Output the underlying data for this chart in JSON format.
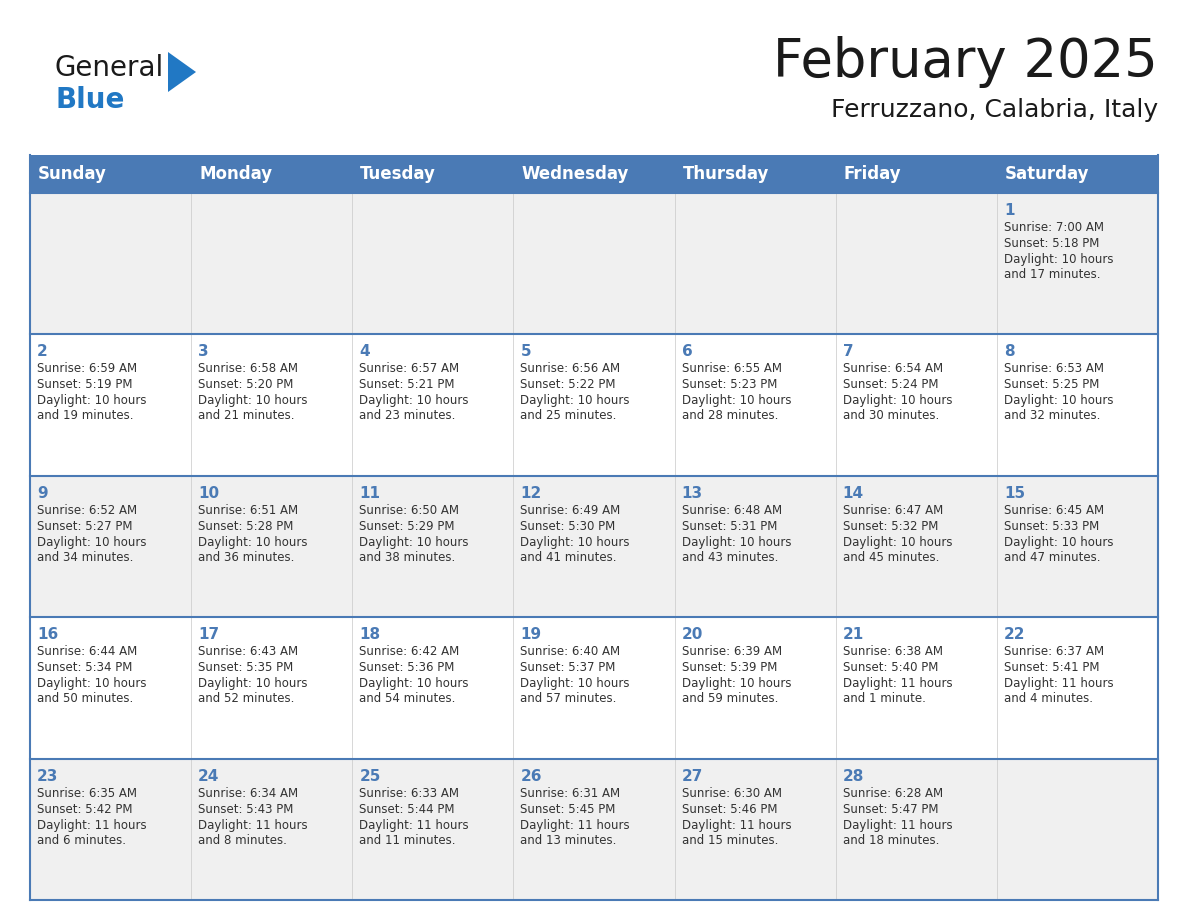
{
  "title": "February 2025",
  "subtitle": "Ferruzzano, Calabria, Italy",
  "days_of_week": [
    "Sunday",
    "Monday",
    "Tuesday",
    "Wednesday",
    "Thursday",
    "Friday",
    "Saturday"
  ],
  "header_bg": "#4a7ab5",
  "header_text": "#ffffff",
  "cell_bg_odd": "#f0f0f0",
  "cell_bg_even": "#ffffff",
  "border_color": "#4a7ab5",
  "day_number_color": "#4a7ab5",
  "text_color": "#333333",
  "logo_general_color": "#1a1a1a",
  "logo_blue_color": "#2178c4",
  "logo_triangle_color": "#2178c4",
  "title_color": "#1a1a1a",
  "calendar_data": [
    [
      null,
      null,
      null,
      null,
      null,
      null,
      {
        "day": "1",
        "sunrise": "7:00 AM",
        "sunset": "5:18 PM",
        "daylight_line1": "Daylight: 10 hours",
        "daylight_line2": "and 17 minutes."
      }
    ],
    [
      {
        "day": "2",
        "sunrise": "6:59 AM",
        "sunset": "5:19 PM",
        "daylight_line1": "Daylight: 10 hours",
        "daylight_line2": "and 19 minutes."
      },
      {
        "day": "3",
        "sunrise": "6:58 AM",
        "sunset": "5:20 PM",
        "daylight_line1": "Daylight: 10 hours",
        "daylight_line2": "and 21 minutes."
      },
      {
        "day": "4",
        "sunrise": "6:57 AM",
        "sunset": "5:21 PM",
        "daylight_line1": "Daylight: 10 hours",
        "daylight_line2": "and 23 minutes."
      },
      {
        "day": "5",
        "sunrise": "6:56 AM",
        "sunset": "5:22 PM",
        "daylight_line1": "Daylight: 10 hours",
        "daylight_line2": "and 25 minutes."
      },
      {
        "day": "6",
        "sunrise": "6:55 AM",
        "sunset": "5:23 PM",
        "daylight_line1": "Daylight: 10 hours",
        "daylight_line2": "and 28 minutes."
      },
      {
        "day": "7",
        "sunrise": "6:54 AM",
        "sunset": "5:24 PM",
        "daylight_line1": "Daylight: 10 hours",
        "daylight_line2": "and 30 minutes."
      },
      {
        "day": "8",
        "sunrise": "6:53 AM",
        "sunset": "5:25 PM",
        "daylight_line1": "Daylight: 10 hours",
        "daylight_line2": "and 32 minutes."
      }
    ],
    [
      {
        "day": "9",
        "sunrise": "6:52 AM",
        "sunset": "5:27 PM",
        "daylight_line1": "Daylight: 10 hours",
        "daylight_line2": "and 34 minutes."
      },
      {
        "day": "10",
        "sunrise": "6:51 AM",
        "sunset": "5:28 PM",
        "daylight_line1": "Daylight: 10 hours",
        "daylight_line2": "and 36 minutes."
      },
      {
        "day": "11",
        "sunrise": "6:50 AM",
        "sunset": "5:29 PM",
        "daylight_line1": "Daylight: 10 hours",
        "daylight_line2": "and 38 minutes."
      },
      {
        "day": "12",
        "sunrise": "6:49 AM",
        "sunset": "5:30 PM",
        "daylight_line1": "Daylight: 10 hours",
        "daylight_line2": "and 41 minutes."
      },
      {
        "day": "13",
        "sunrise": "6:48 AM",
        "sunset": "5:31 PM",
        "daylight_line1": "Daylight: 10 hours",
        "daylight_line2": "and 43 minutes."
      },
      {
        "day": "14",
        "sunrise": "6:47 AM",
        "sunset": "5:32 PM",
        "daylight_line1": "Daylight: 10 hours",
        "daylight_line2": "and 45 minutes."
      },
      {
        "day": "15",
        "sunrise": "6:45 AM",
        "sunset": "5:33 PM",
        "daylight_line1": "Daylight: 10 hours",
        "daylight_line2": "and 47 minutes."
      }
    ],
    [
      {
        "day": "16",
        "sunrise": "6:44 AM",
        "sunset": "5:34 PM",
        "daylight_line1": "Daylight: 10 hours",
        "daylight_line2": "and 50 minutes."
      },
      {
        "day": "17",
        "sunrise": "6:43 AM",
        "sunset": "5:35 PM",
        "daylight_line1": "Daylight: 10 hours",
        "daylight_line2": "and 52 minutes."
      },
      {
        "day": "18",
        "sunrise": "6:42 AM",
        "sunset": "5:36 PM",
        "daylight_line1": "Daylight: 10 hours",
        "daylight_line2": "and 54 minutes."
      },
      {
        "day": "19",
        "sunrise": "6:40 AM",
        "sunset": "5:37 PM",
        "daylight_line1": "Daylight: 10 hours",
        "daylight_line2": "and 57 minutes."
      },
      {
        "day": "20",
        "sunrise": "6:39 AM",
        "sunset": "5:39 PM",
        "daylight_line1": "Daylight: 10 hours",
        "daylight_line2": "and 59 minutes."
      },
      {
        "day": "21",
        "sunrise": "6:38 AM",
        "sunset": "5:40 PM",
        "daylight_line1": "Daylight: 11 hours",
        "daylight_line2": "and 1 minute."
      },
      {
        "day": "22",
        "sunrise": "6:37 AM",
        "sunset": "5:41 PM",
        "daylight_line1": "Daylight: 11 hours",
        "daylight_line2": "and 4 minutes."
      }
    ],
    [
      {
        "day": "23",
        "sunrise": "6:35 AM",
        "sunset": "5:42 PM",
        "daylight_line1": "Daylight: 11 hours",
        "daylight_line2": "and 6 minutes."
      },
      {
        "day": "24",
        "sunrise": "6:34 AM",
        "sunset": "5:43 PM",
        "daylight_line1": "Daylight: 11 hours",
        "daylight_line2": "and 8 minutes."
      },
      {
        "day": "25",
        "sunrise": "6:33 AM",
        "sunset": "5:44 PM",
        "daylight_line1": "Daylight: 11 hours",
        "daylight_line2": "and 11 minutes."
      },
      {
        "day": "26",
        "sunrise": "6:31 AM",
        "sunset": "5:45 PM",
        "daylight_line1": "Daylight: 11 hours",
        "daylight_line2": "and 13 minutes."
      },
      {
        "day": "27",
        "sunrise": "6:30 AM",
        "sunset": "5:46 PM",
        "daylight_line1": "Daylight: 11 hours",
        "daylight_line2": "and 15 minutes."
      },
      {
        "day": "28",
        "sunrise": "6:28 AM",
        "sunset": "5:47 PM",
        "daylight_line1": "Daylight: 11 hours",
        "daylight_line2": "and 18 minutes."
      },
      null
    ]
  ]
}
